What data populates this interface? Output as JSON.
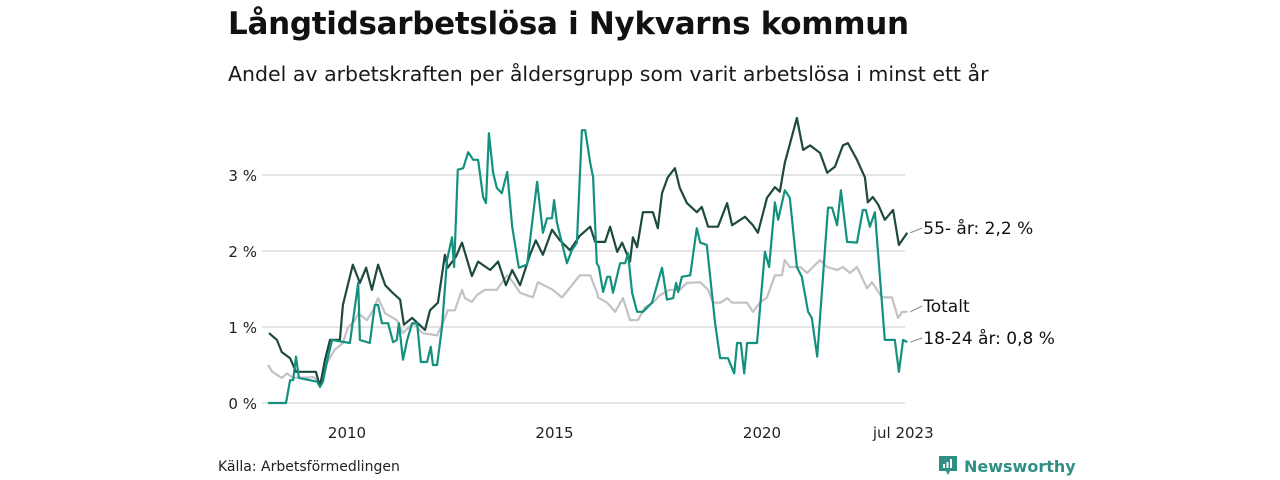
{
  "title": "Långtidsarbetslösa i Nykvarns kommun",
  "subtitle": "Andel av arbetskraften per åldersgrupp som varit arbetslösa i minst ett år",
  "source": "Källa: Arbetsförmedlingen",
  "logo": "Newsworthy",
  "chart_data": {
    "type": "line",
    "title": "Långtidsarbetslösa i Nykvarns kommun",
    "xlabel": "",
    "ylabel": "",
    "xlim": [
      2008.1,
      2023.5
    ],
    "ylim": [
      0,
      3.8
    ],
    "grid": true,
    "y_ticks": [
      {
        "v": 0,
        "label": "0 %"
      },
      {
        "v": 1,
        "label": "1 %"
      },
      {
        "v": 2,
        "label": "2 %"
      },
      {
        "v": 3,
        "label": "3 %"
      }
    ],
    "x_ticks": [
      {
        "v": 2010,
        "label": "2010"
      },
      {
        "v": 2015,
        "label": "2015"
      },
      {
        "v": 2020,
        "label": "2020"
      },
      {
        "v": 2023.5,
        "label": "jul 2023"
      }
    ],
    "series": [
      {
        "name": "Totalt",
        "label": "Totalt",
        "color": "#c2c1c6",
        "points": [
          [
            2008.1,
            0.5
          ],
          [
            2008.2,
            0.41
          ],
          [
            2008.43,
            0.33
          ],
          [
            2008.55,
            0.39
          ],
          [
            2008.7,
            0.33
          ],
          [
            2009.2,
            0.34
          ],
          [
            2009.35,
            0.26
          ],
          [
            2009.52,
            0.53
          ],
          [
            2009.7,
            0.7
          ],
          [
            2009.9,
            0.79
          ],
          [
            2010.02,
            0.99
          ],
          [
            2010.19,
            1.09
          ],
          [
            2010.27,
            1.18
          ],
          [
            2010.48,
            1.09
          ],
          [
            2010.63,
            1.22
          ],
          [
            2010.75,
            1.38
          ],
          [
            2010.92,
            1.18
          ],
          [
            2011.2,
            1.09
          ],
          [
            2011.35,
            0.92
          ],
          [
            2011.59,
            1.05
          ],
          [
            2011.83,
            0.92
          ],
          [
            2012.17,
            0.89
          ],
          [
            2012.31,
            1.05
          ],
          [
            2012.43,
            1.22
          ],
          [
            2012.6,
            1.22
          ],
          [
            2012.77,
            1.49
          ],
          [
            2012.84,
            1.38
          ],
          [
            2013.01,
            1.33
          ],
          [
            2013.13,
            1.42
          ],
          [
            2013.32,
            1.49
          ],
          [
            2013.61,
            1.49
          ],
          [
            2013.86,
            1.68
          ],
          [
            2014.0,
            1.59
          ],
          [
            2014.17,
            1.45
          ],
          [
            2014.48,
            1.39
          ],
          [
            2014.6,
            1.59
          ],
          [
            2014.96,
            1.49
          ],
          [
            2015.18,
            1.39
          ],
          [
            2015.33,
            1.49
          ],
          [
            2015.61,
            1.68
          ],
          [
            2015.86,
            1.68
          ],
          [
            2016.02,
            1.46
          ],
          [
            2016.05,
            1.39
          ],
          [
            2016.27,
            1.32
          ],
          [
            2016.46,
            1.2
          ],
          [
            2016.65,
            1.38
          ],
          [
            2016.82,
            1.09
          ],
          [
            2017.01,
            1.09
          ],
          [
            2017.18,
            1.26
          ],
          [
            2017.37,
            1.32
          ],
          [
            2017.54,
            1.42
          ],
          [
            2017.78,
            1.49
          ],
          [
            2018.02,
            1.49
          ],
          [
            2018.19,
            1.58
          ],
          [
            2018.51,
            1.59
          ],
          [
            2018.7,
            1.49
          ],
          [
            2018.82,
            1.32
          ],
          [
            2019.0,
            1.32
          ],
          [
            2019.16,
            1.38
          ],
          [
            2019.28,
            1.32
          ],
          [
            2019.64,
            1.32
          ],
          [
            2019.78,
            1.2
          ],
          [
            2019.95,
            1.32
          ],
          [
            2020.12,
            1.39
          ],
          [
            2020.31,
            1.68
          ],
          [
            2020.48,
            1.68
          ],
          [
            2020.55,
            1.88
          ],
          [
            2020.67,
            1.79
          ],
          [
            2020.92,
            1.79
          ],
          [
            2021.09,
            1.71
          ],
          [
            2021.23,
            1.79
          ],
          [
            2021.4,
            1.88
          ],
          [
            2021.57,
            1.79
          ],
          [
            2021.81,
            1.75
          ],
          [
            2021.95,
            1.79
          ],
          [
            2022.12,
            1.71
          ],
          [
            2022.29,
            1.79
          ],
          [
            2022.53,
            1.51
          ],
          [
            2022.65,
            1.59
          ],
          [
            2022.77,
            1.49
          ],
          [
            2022.89,
            1.39
          ],
          [
            2023.13,
            1.39
          ],
          [
            2023.28,
            1.12
          ],
          [
            2023.38,
            1.2
          ],
          [
            2023.5,
            1.2
          ]
        ]
      },
      {
        "name": "55- år",
        "label": "55- år: 2,2 %",
        "color": "#1d4a3c",
        "points": [
          [
            2008.12,
            0.92
          ],
          [
            2008.31,
            0.83
          ],
          [
            2008.43,
            0.67
          ],
          [
            2008.63,
            0.59
          ],
          [
            2008.77,
            0.41
          ],
          [
            2009.25,
            0.41
          ],
          [
            2009.35,
            0.22
          ],
          [
            2009.47,
            0.57
          ],
          [
            2009.59,
            0.83
          ],
          [
            2009.83,
            0.83
          ],
          [
            2009.9,
            1.29
          ],
          [
            2010.14,
            1.82
          ],
          [
            2010.31,
            1.58
          ],
          [
            2010.46,
            1.78
          ],
          [
            2010.6,
            1.49
          ],
          [
            2010.75,
            1.82
          ],
          [
            2010.92,
            1.55
          ],
          [
            2011.08,
            1.46
          ],
          [
            2011.28,
            1.36
          ],
          [
            2011.37,
            1.03
          ],
          [
            2011.57,
            1.12
          ],
          [
            2011.88,
            0.96
          ],
          [
            2012.0,
            1.22
          ],
          [
            2012.19,
            1.32
          ],
          [
            2012.36,
            1.95
          ],
          [
            2012.43,
            1.78
          ],
          [
            2012.63,
            1.93
          ],
          [
            2012.77,
            2.11
          ],
          [
            2013.01,
            1.67
          ],
          [
            2013.16,
            1.86
          ],
          [
            2013.45,
            1.75
          ],
          [
            2013.64,
            1.86
          ],
          [
            2013.83,
            1.55
          ],
          [
            2013.98,
            1.75
          ],
          [
            2014.17,
            1.55
          ],
          [
            2014.41,
            1.95
          ],
          [
            2014.55,
            2.14
          ],
          [
            2014.72,
            1.95
          ],
          [
            2014.94,
            2.28
          ],
          [
            2015.13,
            2.14
          ],
          [
            2015.37,
            2.01
          ],
          [
            2015.61,
            2.2
          ],
          [
            2015.86,
            2.32
          ],
          [
            2015.98,
            2.12
          ],
          [
            2016.22,
            2.12
          ],
          [
            2016.34,
            2.32
          ],
          [
            2016.51,
            1.99
          ],
          [
            2016.63,
            2.11
          ],
          [
            2016.82,
            1.86
          ],
          [
            2016.89,
            2.18
          ],
          [
            2016.99,
            2.05
          ],
          [
            2017.13,
            2.51
          ],
          [
            2017.37,
            2.51
          ],
          [
            2017.49,
            2.3
          ],
          [
            2017.59,
            2.76
          ],
          [
            2017.73,
            2.97
          ],
          [
            2017.9,
            3.09
          ],
          [
            2018.02,
            2.83
          ],
          [
            2018.19,
            2.63
          ],
          [
            2018.43,
            2.51
          ],
          [
            2018.55,
            2.58
          ],
          [
            2018.7,
            2.32
          ],
          [
            2018.94,
            2.32
          ],
          [
            2019.16,
            2.63
          ],
          [
            2019.28,
            2.34
          ],
          [
            2019.59,
            2.45
          ],
          [
            2019.78,
            2.34
          ],
          [
            2019.9,
            2.24
          ],
          [
            2020.12,
            2.7
          ],
          [
            2020.31,
            2.84
          ],
          [
            2020.43,
            2.78
          ],
          [
            2020.55,
            3.16
          ],
          [
            2020.84,
            3.75
          ],
          [
            2020.99,
            3.33
          ],
          [
            2021.16,
            3.39
          ],
          [
            2021.4,
            3.29
          ],
          [
            2021.57,
            3.03
          ],
          [
            2021.76,
            3.11
          ],
          [
            2021.95,
            3.39
          ],
          [
            2022.07,
            3.42
          ],
          [
            2022.29,
            3.2
          ],
          [
            2022.48,
            2.97
          ],
          [
            2022.55,
            2.64
          ],
          [
            2022.67,
            2.71
          ],
          [
            2022.8,
            2.61
          ],
          [
            2022.96,
            2.41
          ],
          [
            2023.16,
            2.54
          ],
          [
            2023.3,
            2.08
          ],
          [
            2023.5,
            2.24
          ]
        ]
      },
      {
        "name": "18-24 år",
        "label": "18-24 år: 0,8 %",
        "color": "#14907f",
        "points": [
          [
            2008.1,
            0
          ],
          [
            2008.53,
            0
          ],
          [
            2008.63,
            0.3
          ],
          [
            2008.7,
            0.3
          ],
          [
            2008.77,
            0.61
          ],
          [
            2008.84,
            0.33
          ],
          [
            2009.28,
            0.28
          ],
          [
            2009.35,
            0.21
          ],
          [
            2009.42,
            0.28
          ],
          [
            2009.54,
            0.6
          ],
          [
            2009.64,
            0.83
          ],
          [
            2010.07,
            0.79
          ],
          [
            2010.27,
            1.58
          ],
          [
            2010.31,
            0.83
          ],
          [
            2010.55,
            0.79
          ],
          [
            2010.67,
            1.29
          ],
          [
            2010.75,
            1.29
          ],
          [
            2010.84,
            1.05
          ],
          [
            2010.99,
            1.05
          ],
          [
            2011.11,
            0.8
          ],
          [
            2011.2,
            0.83
          ],
          [
            2011.25,
            1.05
          ],
          [
            2011.35,
            0.57
          ],
          [
            2011.45,
            0.83
          ],
          [
            2011.57,
            1.05
          ],
          [
            2011.69,
            1.05
          ],
          [
            2011.78,
            0.54
          ],
          [
            2011.93,
            0.54
          ],
          [
            2012.02,
            0.74
          ],
          [
            2012.07,
            0.5
          ],
          [
            2012.17,
            0.5
          ],
          [
            2012.29,
            1.0
          ],
          [
            2012.41,
            1.88
          ],
          [
            2012.53,
            2.18
          ],
          [
            2012.58,
            1.79
          ],
          [
            2012.67,
            3.07
          ],
          [
            2012.8,
            3.09
          ],
          [
            2012.92,
            3.3
          ],
          [
            2013.04,
            3.2
          ],
          [
            2013.16,
            3.2
          ],
          [
            2013.28,
            2.71
          ],
          [
            2013.35,
            2.63
          ],
          [
            2013.42,
            3.55
          ],
          [
            2013.52,
            3.03
          ],
          [
            2013.61,
            2.83
          ],
          [
            2013.73,
            2.76
          ],
          [
            2013.86,
            3.04
          ],
          [
            2013.98,
            2.32
          ],
          [
            2014.14,
            1.78
          ],
          [
            2014.34,
            1.82
          ],
          [
            2014.58,
            2.91
          ],
          [
            2014.72,
            2.24
          ],
          [
            2014.82,
            2.43
          ],
          [
            2014.94,
            2.43
          ],
          [
            2014.99,
            2.67
          ],
          [
            2015.06,
            2.37
          ],
          [
            2015.3,
            1.84
          ],
          [
            2015.42,
            2.01
          ],
          [
            2015.54,
            2.11
          ],
          [
            2015.66,
            3.59
          ],
          [
            2015.74,
            3.59
          ],
          [
            2015.86,
            3.16
          ],
          [
            2015.93,
            2.97
          ],
          [
            2016.02,
            1.84
          ],
          [
            2016.07,
            1.79
          ],
          [
            2016.17,
            1.46
          ],
          [
            2016.27,
            1.66
          ],
          [
            2016.34,
            1.66
          ],
          [
            2016.41,
            1.45
          ],
          [
            2016.58,
            1.84
          ],
          [
            2016.7,
            1.84
          ],
          [
            2016.77,
            1.97
          ],
          [
            2016.87,
            1.45
          ],
          [
            2016.99,
            1.2
          ],
          [
            2017.13,
            1.2
          ],
          [
            2017.35,
            1.32
          ],
          [
            2017.59,
            1.78
          ],
          [
            2017.71,
            1.36
          ],
          [
            2017.86,
            1.38
          ],
          [
            2017.93,
            1.58
          ],
          [
            2017.98,
            1.46
          ],
          [
            2018.07,
            1.66
          ],
          [
            2018.27,
            1.68
          ],
          [
            2018.43,
            2.3
          ],
          [
            2018.51,
            2.11
          ],
          [
            2018.67,
            2.08
          ],
          [
            2018.87,
            1.05
          ],
          [
            2018.99,
            0.59
          ],
          [
            2019.18,
            0.59
          ],
          [
            2019.33,
            0.39
          ],
          [
            2019.4,
            0.79
          ],
          [
            2019.49,
            0.79
          ],
          [
            2019.57,
            0.39
          ],
          [
            2019.64,
            0.79
          ],
          [
            2019.88,
            0.79
          ],
          [
            2020.07,
            1.99
          ],
          [
            2020.17,
            1.79
          ],
          [
            2020.31,
            2.64
          ],
          [
            2020.39,
            2.41
          ],
          [
            2020.55,
            2.8
          ],
          [
            2020.67,
            2.7
          ],
          [
            2020.84,
            1.79
          ],
          [
            2020.96,
            1.66
          ],
          [
            2021.11,
            1.2
          ],
          [
            2021.2,
            1.12
          ],
          [
            2021.33,
            0.61
          ],
          [
            2021.59,
            2.57
          ],
          [
            2021.69,
            2.57
          ],
          [
            2021.81,
            2.34
          ],
          [
            2021.9,
            2.8
          ],
          [
            2022.05,
            2.12
          ],
          [
            2022.29,
            2.11
          ],
          [
            2022.43,
            2.54
          ],
          [
            2022.5,
            2.54
          ],
          [
            2022.6,
            2.32
          ],
          [
            2022.72,
            2.51
          ],
          [
            2022.96,
            0.83
          ],
          [
            2023.2,
            0.83
          ],
          [
            2023.3,
            0.41
          ],
          [
            2023.4,
            0.83
          ],
          [
            2023.5,
            0.8
          ]
        ]
      }
    ]
  }
}
